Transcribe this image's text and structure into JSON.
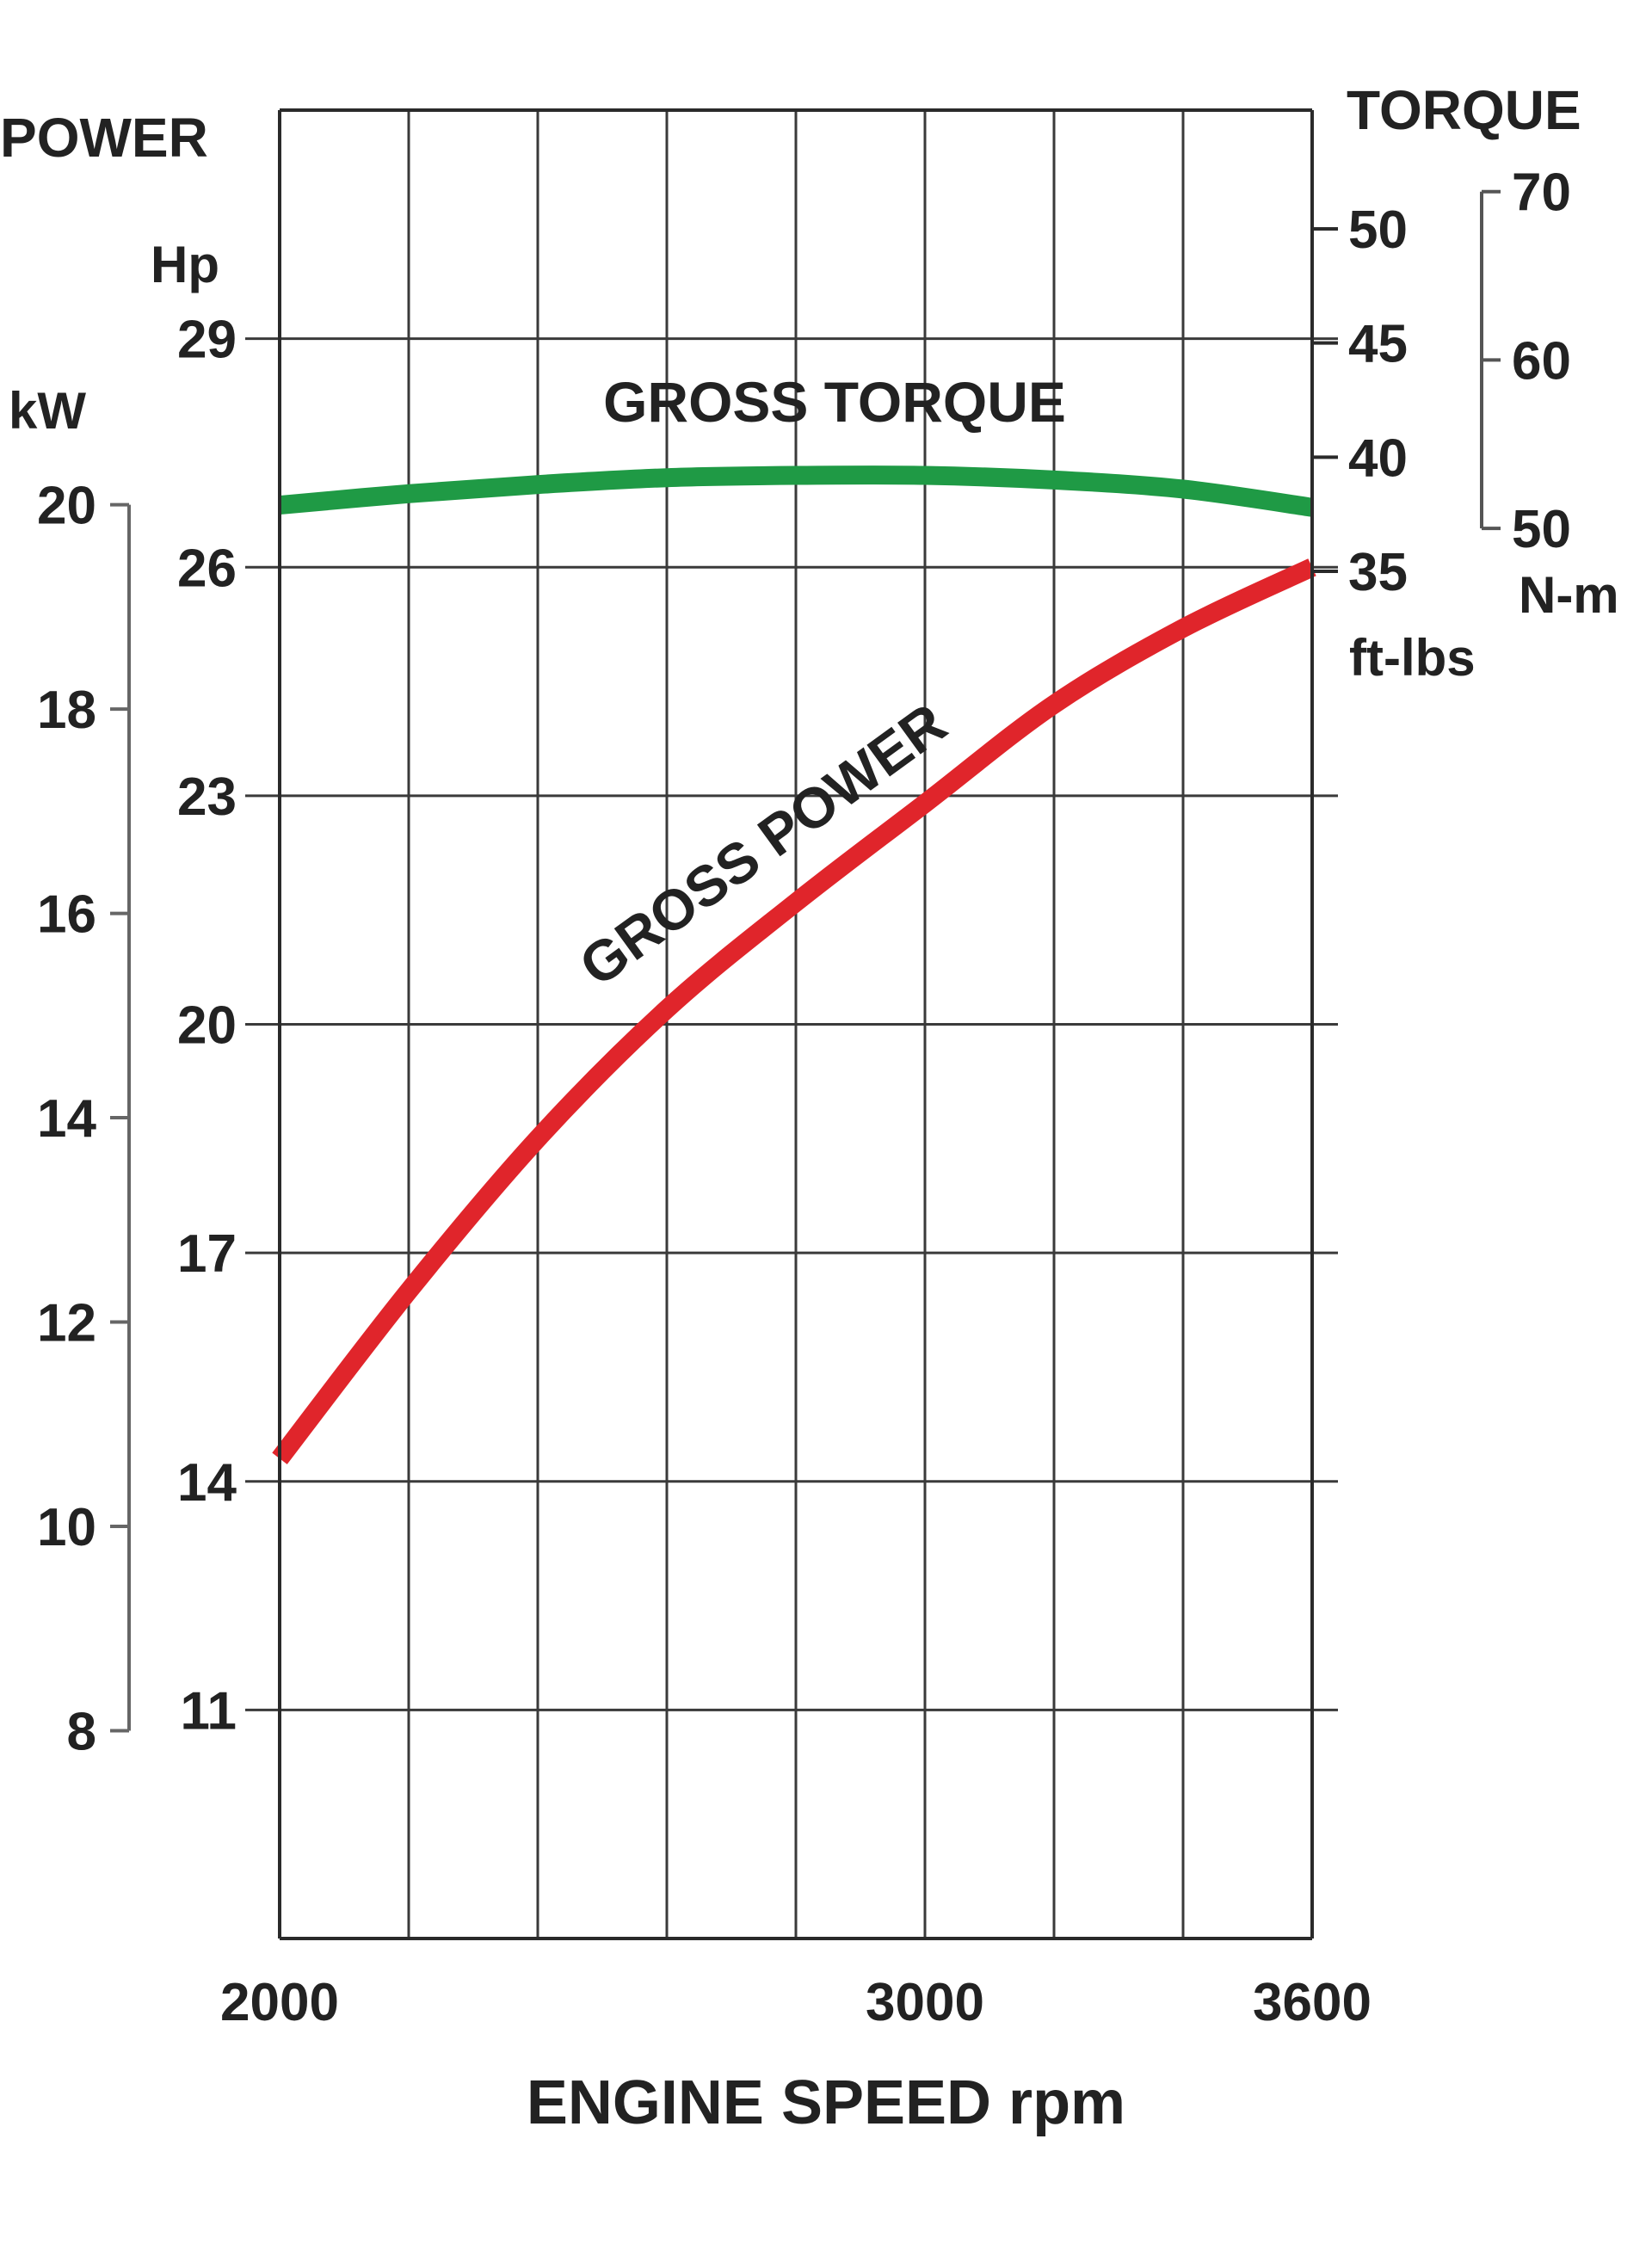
{
  "chart_data": {
    "type": "line",
    "x_label": "ENGINE SPEED rpm",
    "x_range": [
      2000,
      3600
    ],
    "x_ticks": [
      2000,
      3000,
      3600
    ],
    "left_axis": {
      "title": "POWER",
      "hp_unit": "Hp",
      "hp_range": [
        8,
        32
      ],
      "hp_ticks": [
        11,
        14,
        17,
        20,
        23,
        26,
        29
      ],
      "kw_unit": "kW",
      "kw_ticks": [
        8,
        10,
        12,
        14,
        16,
        18,
        20
      ]
    },
    "right_axis": {
      "title": "TORQUE",
      "ftlbs_unit": "ft-lbs",
      "ftlbs_range": [
        35,
        55
      ],
      "ftlbs_ticks": [
        35,
        40,
        45,
        50
      ],
      "nm_unit": "N-m",
      "nm_ticks": [
        50,
        60,
        70
      ]
    },
    "grid": true,
    "series": [
      {
        "name": "GROSS POWER",
        "axis": "hp",
        "color": "#e0252b",
        "x": [
          2000,
          2200,
          2400,
          2600,
          2800,
          3000,
          3200,
          3400,
          3600
        ],
        "y": [
          14.3,
          16.5,
          18.5,
          20.2,
          21.6,
          22.9,
          24.2,
          25.2,
          26.0
        ]
      },
      {
        "name": "GROSS TORQUE",
        "axis": "ftlbs",
        "color": "#1f9a45",
        "x": [
          2000,
          2200,
          2400,
          2600,
          2800,
          3000,
          3200,
          3400,
          3600
        ],
        "y": [
          37.9,
          38.4,
          38.8,
          39.1,
          39.2,
          39.2,
          39.0,
          38.6,
          37.8
        ]
      }
    ]
  }
}
